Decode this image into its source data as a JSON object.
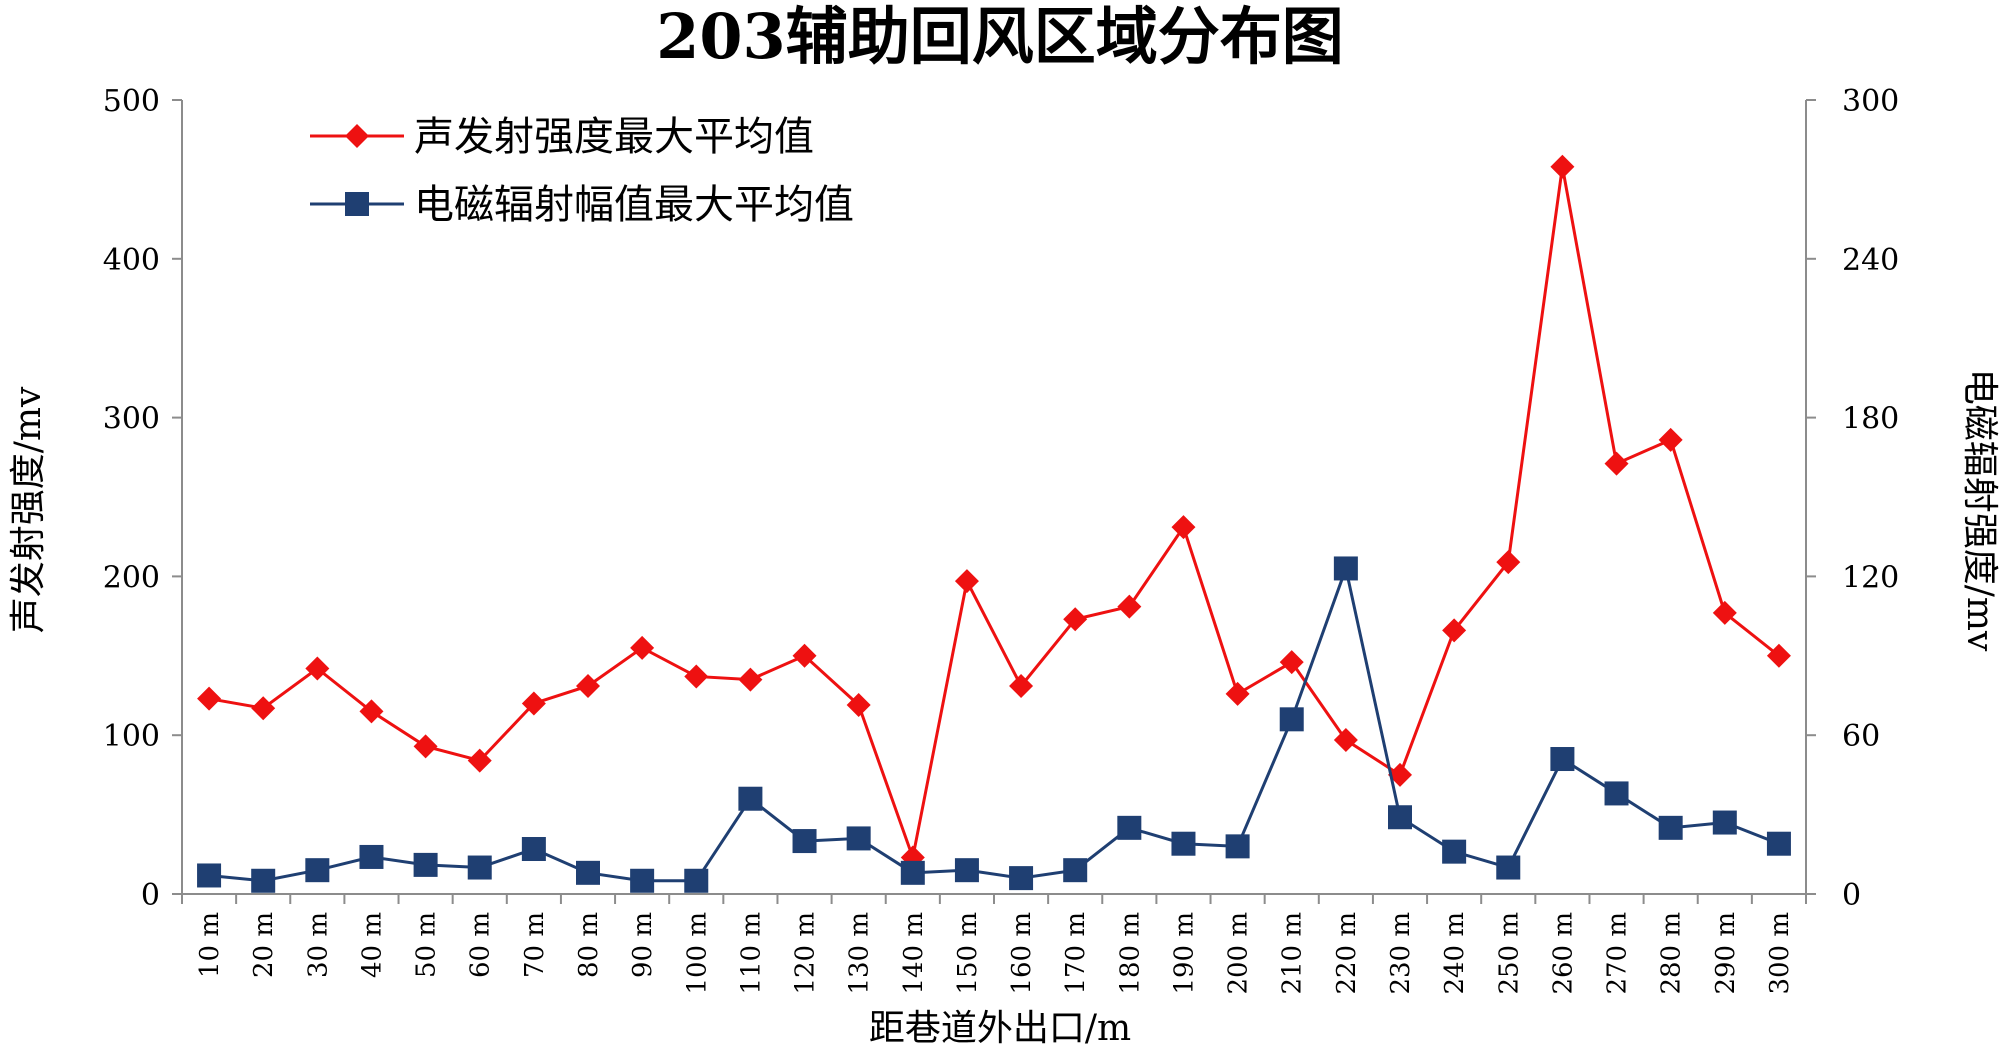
{
  "chart_data": {
    "type": "line",
    "title": "203辅助回风区域分布图",
    "xlabel": "距巷道外出口/m",
    "ylabel_left": "声发射强度/mv",
    "ylabel_right": "电磁辐射强度/mv",
    "ylim_left": [
      0,
      500
    ],
    "ylim_right": [
      0,
      300
    ],
    "yticks_left": [
      "0",
      "100",
      "200",
      "300",
      "400",
      "500"
    ],
    "yticks_right": [
      "0",
      "60",
      "120",
      "180",
      "240",
      "300"
    ],
    "categories": [
      "10 m",
      "20 m",
      "30 m",
      "40 m",
      "50 m",
      "60 m",
      "70 m",
      "80 m",
      "90 m",
      "100 m",
      "110 m",
      "120 m",
      "130 m",
      "140 m",
      "150 m",
      "160 m",
      "170 m",
      "180 m",
      "190 m",
      "200 m",
      "210 m",
      "220 m",
      "230 m",
      "240 m",
      "250 m",
      "260 m",
      "270 m",
      "280 m",
      "290 m",
      "300 m"
    ],
    "legend_position": "top-left",
    "series": [
      {
        "name": "声发射强度最大平均值",
        "axis": "left",
        "color": "#ee1111",
        "marker": "diamond",
        "values": [
          123,
          117,
          142,
          115,
          93,
          84,
          120,
          131,
          155,
          137,
          135,
          150,
          119,
          23,
          197,
          131,
          173,
          181,
          231,
          126,
          146,
          97,
          75,
          166,
          209,
          458,
          271,
          286,
          177,
          150
        ]
      },
      {
        "name": "电磁辐射幅值最大平均值",
        "axis": "right",
        "color": "#1f3f72",
        "marker": "square",
        "values": [
          7,
          5,
          9,
          14,
          11,
          10,
          17,
          8,
          5,
          5,
          36,
          20,
          21,
          8,
          9,
          6,
          9,
          25,
          19,
          18,
          66,
          123,
          29,
          16,
          10,
          51,
          38,
          25,
          27,
          19
        ]
      }
    ]
  }
}
